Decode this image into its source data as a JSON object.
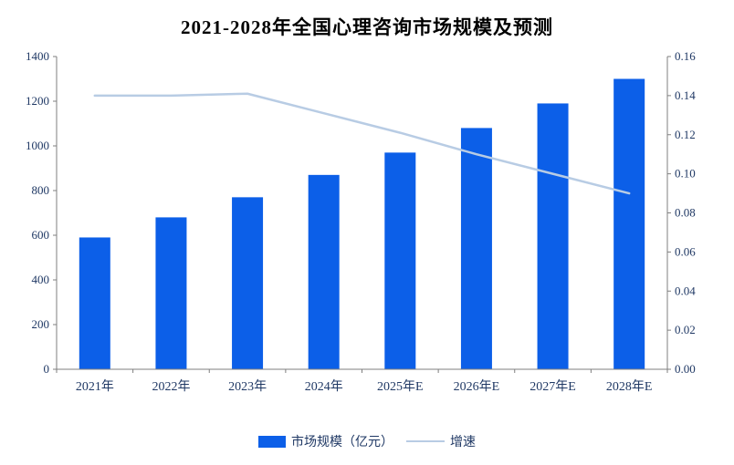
{
  "chart_data": {
    "type": "combo",
    "title": "2021-2028年全国心理咨询市场规模及预测",
    "categories": [
      "2021年",
      "2022年",
      "2023年",
      "2024年",
      "2025年E",
      "2026年E",
      "2027年E",
      "2028年E"
    ],
    "series": [
      {
        "name": "市场规模（亿元）",
        "type": "bar",
        "axis": "left",
        "color": "#0c5fe8",
        "values": [
          590,
          680,
          770,
          870,
          970,
          1080,
          1190,
          1300
        ]
      },
      {
        "name": "增速",
        "type": "line",
        "axis": "right",
        "color": "#b8cce4",
        "values": [
          0.14,
          0.14,
          0.141,
          0.131,
          0.121,
          0.11,
          0.1,
          0.09
        ]
      }
    ],
    "left_axis": {
      "min": 0,
      "max": 1400,
      "step": 200
    },
    "right_axis": {
      "min": 0,
      "max": 0.16,
      "step": 0.02,
      "decimals": 2
    },
    "legend_position": "bottom",
    "grid": false,
    "axis_line_color": "#7f7f7f",
    "label_color": "#1f3864"
  }
}
